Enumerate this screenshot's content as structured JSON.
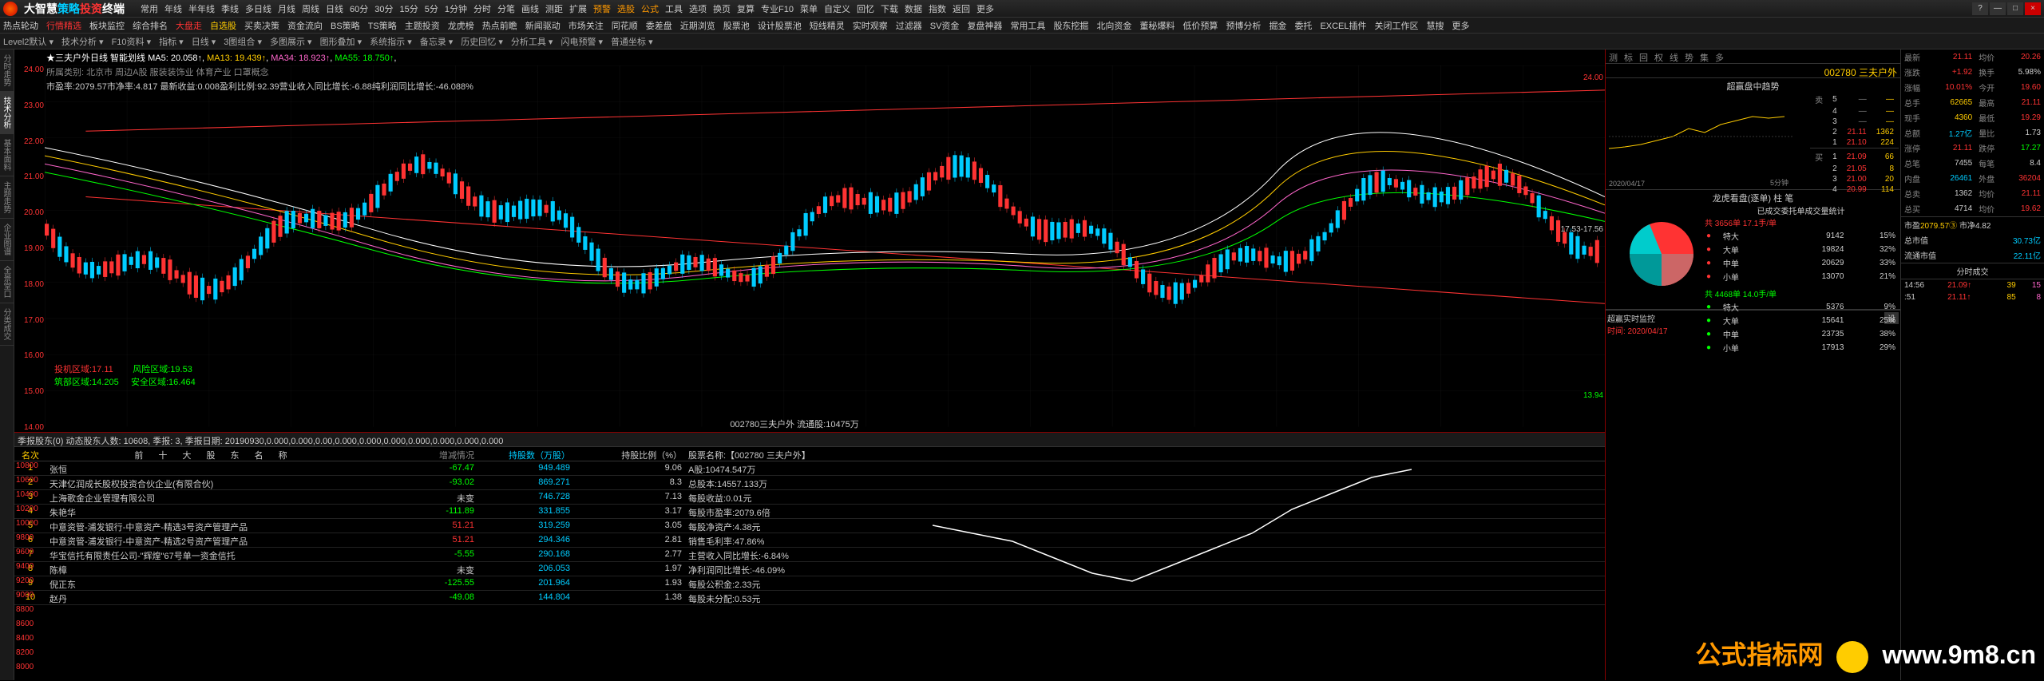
{
  "app": {
    "title_parts": [
      "大智慧",
      "策略",
      "投资",
      "终端"
    ]
  },
  "top_menu": [
    "常用",
    "年线",
    "半年线",
    "季线",
    "多日线",
    "月线",
    "周线",
    "日线",
    "60分",
    "30分",
    "15分",
    "5分",
    "1分钟",
    "分时",
    "分笔",
    "画线",
    "测距",
    "扩展",
    "预警",
    "选股",
    "公式",
    "工具",
    "选项",
    "换页",
    "复算",
    "专业F10",
    "菜单",
    "自定义",
    "回忆",
    "下载",
    "数据",
    "指数",
    "返回",
    "更多"
  ],
  "toolbar1": [
    "热点轮动",
    "行情精选",
    "板块监控",
    "综合排名",
    "大盘走",
    "自选股",
    "买卖决策",
    "资金流向",
    "BS策略",
    "TS策略",
    "主题投资",
    "龙虎榜",
    "热点前瞻",
    "新闻驱动",
    "市场关注",
    "同花顺",
    "委差盘",
    "近期浏览",
    "股票池",
    "设计股票池",
    "短线精灵",
    "实时观察",
    "过滤器",
    "SV资金",
    "复盘神器",
    "常用工具",
    "股东挖掘",
    "北向资金",
    "董秘爆料",
    "低价预算",
    "预博分析",
    "掘金",
    "委托",
    "EXCEL插件",
    "关闭工作区",
    "慧搜",
    "更多"
  ],
  "toolbar2": [
    "Level2默认",
    "技术分析",
    "F10资料",
    "指标",
    "日线",
    "3图组合",
    "多图展示",
    "图形叠加",
    "系统指示",
    "备忘录",
    "历史回忆",
    "分析工具",
    "闪电预警",
    "普通坐标"
  ],
  "left_tabs": [
    "分时走势",
    "技术分析",
    "基本面料",
    "主题走势",
    "企业图谱",
    "全景堂口",
    "分类成交"
  ],
  "chart": {
    "title": "★三夫户外日线 智能划线",
    "ma_labels": {
      "ma5": "MA5: 20.058↑",
      "ma13": "MA13: 19.439↑",
      "ma34": "MA34: 18.923↑",
      "ma55": "MA55: 18.750↑"
    },
    "info_line2": "所属类别: 北京市  周边A股  服装装饰业  体育产业  口罩概念",
    "info_line3": "市盈率:2079.57市净率:4.817   最新收益:0.008盈利比例:92.39营业收入同比增长:-6.88纯利润同比增长:-46.088%",
    "y_ticks": [
      "24.00",
      "23.00",
      "22.00",
      "21.00",
      "20.00",
      "19.00",
      "18.00",
      "17.00",
      "16.00",
      "15.00",
      "14.00"
    ],
    "annotations": {
      "risk_zone": "风险区域:19.53",
      "safe_zone": "安全区域:16.464",
      "inst_zone": "投机区域:17.11",
      "bottom_zone": "筑部区域:14.205"
    },
    "bottom_label": "002780三夫户外  流通股:10475万",
    "high_label": "24.00",
    "low_label": "13.94",
    "range_label": "17.53-17.56",
    "colors": {
      "up": "#ff3333",
      "down": "#00ccff",
      "ma5": "#ffffff",
      "ma13": "#ffcc00",
      "ma34": "#ff66cc",
      "ma55": "#00ff00",
      "grid": "#222222"
    }
  },
  "shareholders": {
    "header": "季报股东(0) 动态股东人数: 10608, 季报: 3, 季报日期: 20190930,0.000,0.000,0.00,0.000,0.000,0.000,0.000,0.000,0.000,0.000",
    "title": "前 十 大 股 东 名 称",
    "cols": [
      "名次",
      "",
      "增减情况",
      "持股数（万股）",
      "持股比例（%）",
      "股票名称:【002780 三夫户外】"
    ],
    "y_scale": [
      "10800",
      "10600",
      "10400",
      "10200",
      "10000",
      "9800",
      "9600",
      "9400",
      "9200",
      "9000",
      "8800",
      "8600",
      "8400",
      "8200",
      "8000"
    ],
    "rows": [
      {
        "rank": "1",
        "name": "张恒",
        "change": "-67.47",
        "change_color": "#00ff00",
        "shares": "949.489",
        "ratio": "9.06",
        "info": "A股:10474.547万"
      },
      {
        "rank": "2",
        "name": "天津亿润成长股权投资合伙企业(有限合伙)",
        "change": "-93.02",
        "change_color": "#00ff00",
        "shares": "869.271",
        "ratio": "8.3",
        "info": "总股本:14557.133万"
      },
      {
        "rank": "3",
        "name": "上海歌金企业管理有限公司",
        "change": "未变",
        "change_color": "#cccccc",
        "shares": "746.728",
        "ratio": "7.13",
        "info": "每股收益:0.01元"
      },
      {
        "rank": "4",
        "name": "朱艳华",
        "change": "-111.89",
        "change_color": "#00ff00",
        "shares": "331.855",
        "ratio": "3.17",
        "info": "每股市盈率:2079.6倍"
      },
      {
        "rank": "5",
        "name": "中意资管-浦发银行-中意资产-精选3号资产管理产品",
        "change": "51.21",
        "change_color": "#ff3333",
        "shares": "319.259",
        "ratio": "3.05",
        "info": "每股净资产:4.38元"
      },
      {
        "rank": "6",
        "name": "中意资管-浦发银行-中意资产-精选2号资产管理产品",
        "change": "51.21",
        "change_color": "#ff3333",
        "shares": "294.346",
        "ratio": "2.81",
        "info": "销售毛利率:47.86%"
      },
      {
        "rank": "7",
        "name": "华宝信托有限责任公司-\"辉煌\"67号单一资金信托",
        "change": "-5.55",
        "change_color": "#00ff00",
        "shares": "290.168",
        "ratio": "2.77",
        "info": "主营收入同比增长:-6.84%"
      },
      {
        "rank": "8",
        "name": "陈樟",
        "change": "未变",
        "change_color": "#cccccc",
        "shares": "206.053",
        "ratio": "1.97",
        "info": "净利润同比增长:-46.09%"
      },
      {
        "rank": "9",
        "name": "倪正东",
        "change": "-125.55",
        "change_color": "#00ff00",
        "shares": "201.964",
        "ratio": "1.93",
        "info": "每股公积金:2.33元"
      },
      {
        "rank": "10",
        "name": "赵丹",
        "change": "-49.08",
        "change_color": "#00ff00",
        "shares": "144.804",
        "ratio": "1.38",
        "info": "每股未分配:0.53元"
      }
    ]
  },
  "right": {
    "tabs": [
      "测",
      "标",
      "回",
      "权",
      "线",
      "势",
      "集",
      "多"
    ],
    "stock_code": "002780",
    "stock_name": "三夫户外",
    "mini_title": "超赢盘中趋势",
    "mini_time": "2020/04/17",
    "mini_period": "5分钟",
    "orderbook": {
      "sell": [
        {
          "n": "5",
          "p": "—",
          "v": "—"
        },
        {
          "n": "4",
          "p": "—",
          "v": "—"
        },
        {
          "n": "3",
          "p": "—",
          "v": "—"
        },
        {
          "n": "2",
          "p": "21.11",
          "v": "1362",
          "c": "#ff3333"
        },
        {
          "n": "1",
          "p": "21.10",
          "v": "224",
          "c": "#ff3333"
        }
      ],
      "buy": [
        {
          "n": "1",
          "p": "21.09",
          "v": "66",
          "c": "#ff3333"
        },
        {
          "n": "2",
          "p": "21.05",
          "v": "8",
          "c": "#ff3333"
        },
        {
          "n": "3",
          "p": "21.00",
          "v": "20",
          "c": "#ff3333"
        },
        {
          "n": "4",
          "p": "20.99",
          "v": "114",
          "c": "#ff3333"
        }
      ],
      "sell_label": "卖",
      "buy_label": "买",
      "pan_label": "盘"
    },
    "pie": {
      "title": "龙虎看盘(逐单)   柱 笔",
      "slices": [
        {
          "label": "特大",
          "value": 9142,
          "pct": "15%",
          "color": "#ff3333"
        },
        {
          "label": "大单",
          "value": 19824,
          "pct": "32%",
          "color": "#cc6666"
        },
        {
          "label": "中单",
          "value": 20629,
          "pct": "33%",
          "color": "#009999"
        },
        {
          "label": "小单",
          "value": 13070,
          "pct": "21%",
          "color": "#00cccc"
        }
      ],
      "header": "已成交委托单成交量统计",
      "total_buy": "共 3656单 17.1手/单",
      "total_sell": "共 4468单 14.0手/单",
      "buy_rows": [
        {
          "l": "特大",
          "v": "9142",
          "p": "15%"
        },
        {
          "l": "大单",
          "v": "19824",
          "p": "32%"
        },
        {
          "l": "中单",
          "v": "20629",
          "p": "33%"
        },
        {
          "l": "小单",
          "v": "13070",
          "p": "21%"
        }
      ],
      "sell_rows": [
        {
          "l": "特大",
          "v": "5376",
          "p": "9%"
        },
        {
          "l": "大单",
          "v": "15641",
          "p": "25%"
        },
        {
          "l": "中单",
          "v": "23735",
          "p": "38%"
        },
        {
          "l": "小单",
          "v": "17913",
          "p": "29%"
        }
      ]
    },
    "monitor": {
      "title": "超赢实时监控",
      "set": "设",
      "time": "时间: 2020/04/17"
    }
  },
  "far_right": {
    "rows": [
      {
        "l": "最新",
        "v1": "21.11",
        "c1": "#ff3333",
        "l2": "均价",
        "v2": "20.26",
        "c2": "#ff3333"
      },
      {
        "l": "涨跌",
        "v1": "+1.92",
        "c1": "#ff3333",
        "l2": "换手",
        "v2": "5.98%",
        "c2": "#ccc"
      },
      {
        "l": "涨幅",
        "v1": "10.01%",
        "c1": "#ff3333",
        "l2": "今开",
        "v2": "19.60",
        "c2": "#ff3333"
      },
      {
        "l": "总手",
        "v1": "62665",
        "c1": "#ffcc00",
        "l2": "最高",
        "v2": "21.11",
        "c2": "#ff3333"
      },
      {
        "l": "现手",
        "v1": "4360",
        "c1": "#ffcc00",
        "l2": "最低",
        "v2": "19.29",
        "c2": "#ff3333"
      },
      {
        "l": "总额",
        "v1": "1.27亿",
        "c1": "#00ccff",
        "l2": "量比",
        "v2": "1.73",
        "c2": "#ccc"
      },
      {
        "l": "涨停",
        "v1": "21.11",
        "c1": "#ff3333",
        "l2": "跌停",
        "v2": "17.27",
        "c2": "#00ff00"
      },
      {
        "l": "总笔",
        "v1": "7455",
        "c1": "#ccc",
        "l2": "每笔",
        "v2": "8.4",
        "c2": "#ccc"
      },
      {
        "l": "内盘",
        "v1": "26461",
        "c1": "#00ccff",
        "l2": "外盘",
        "v2": "36204",
        "c2": "#ff3333"
      },
      {
        "l": "总卖",
        "v1": "1362",
        "c1": "#ccc",
        "l2": "均价",
        "v2": "21.11",
        "c2": "#ff3333"
      },
      {
        "l": "总买",
        "v1": "4714",
        "c1": "#ccc",
        "l2": "均价",
        "v2": "19.62",
        "c2": "#ff3333"
      }
    ],
    "market_cap": {
      "l": "市盈",
      "v1": "2079.57③",
      "l2": "市净",
      "v2": "4.82"
    },
    "total_cap": {
      "l": "总市值",
      "v": "30.73亿"
    },
    "float_cap": {
      "l": "流通市值",
      "v": "22.11亿"
    },
    "tick_header": "分时成交",
    "ticks": [
      {
        "t": "14:56",
        "p": "21.09↑",
        "v": "39",
        "f": "15",
        "pc": "#ff3333"
      },
      {
        "t": ":51",
        "p": "21.11↑",
        "v": "85",
        "f": "8",
        "pc": "#ff3333"
      }
    ]
  },
  "watermark": {
    "t1": "公式指标网",
    "t2": "www.9m8.cn"
  }
}
